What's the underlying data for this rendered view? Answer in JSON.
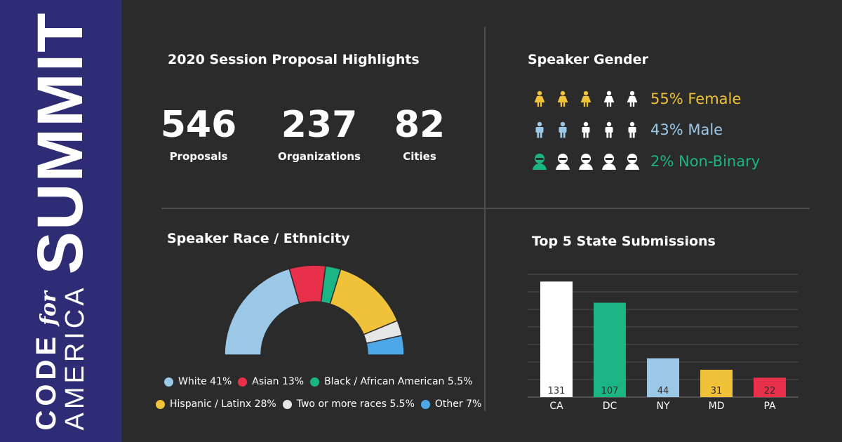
{
  "brand": {
    "code": "CODE",
    "for": "for",
    "america": "AMERICA",
    "summit": "SUMMIT"
  },
  "highlights": {
    "title": "2020 Session Proposal Highlights",
    "stats": [
      {
        "value": "546",
        "label": "Proposals"
      },
      {
        "value": "237",
        "label": "Organizations"
      },
      {
        "value": "82",
        "label": "Cities"
      }
    ]
  },
  "gender": {
    "title": "Speaker Gender",
    "rows": [
      {
        "label": "55% Female",
        "icon": "female-icon",
        "highlighted": 3,
        "total": 5,
        "color": "#f0c23a"
      },
      {
        "label": "43% Male",
        "icon": "male-icon",
        "highlighted": 2,
        "total": 5,
        "color": "#9cc8e8"
      },
      {
        "label": "2% Non-Binary",
        "icon": "nonbinary-icon",
        "highlighted": 1,
        "total": 5,
        "color": "#1bb584"
      }
    ]
  },
  "race": {
    "title": "Speaker Race / Ethnicity",
    "legend_rows": [
      [
        {
          "label": "White 41%",
          "color": "#9cc8e8"
        },
        {
          "label": "Asian 13%",
          "color": "#e8304a"
        },
        {
          "label": "Black / African American 5.5%",
          "color": "#1bb584"
        }
      ],
      [
        {
          "label": "Hispanic / Latinx 28%",
          "color": "#f0c23a"
        },
        {
          "label": "Two or more races 5.5%",
          "color": "#e6e6e6"
        },
        {
          "label": "Other 7%",
          "color": "#4ea8e8"
        }
      ]
    ]
  },
  "chart_data": [
    {
      "type": "pie",
      "title": "Speaker Race / Ethnicity",
      "style": "semi-donut",
      "categories": [
        "White",
        "Asian",
        "Black / African American",
        "Hispanic / Latinx",
        "Two or more races",
        "Other"
      ],
      "values": [
        41,
        13,
        5.5,
        28,
        5.5,
        7
      ],
      "colors": [
        "#9cc8e8",
        "#e8304a",
        "#1bb584",
        "#f0c23a",
        "#e6e6e6",
        "#4ea8e8"
      ]
    },
    {
      "type": "bar",
      "title": "Top 5 State Submissions",
      "categories": [
        "CA",
        "DC",
        "NY",
        "MD",
        "PA"
      ],
      "values": [
        131,
        107,
        44,
        31,
        22
      ],
      "colors": [
        "#ffffff",
        "#1bb584",
        "#9cc8e8",
        "#f0c23a",
        "#e8304a"
      ],
      "ylim": [
        0,
        140
      ],
      "grid": true
    }
  ],
  "states": {
    "title": "Top 5 State Submissions"
  }
}
